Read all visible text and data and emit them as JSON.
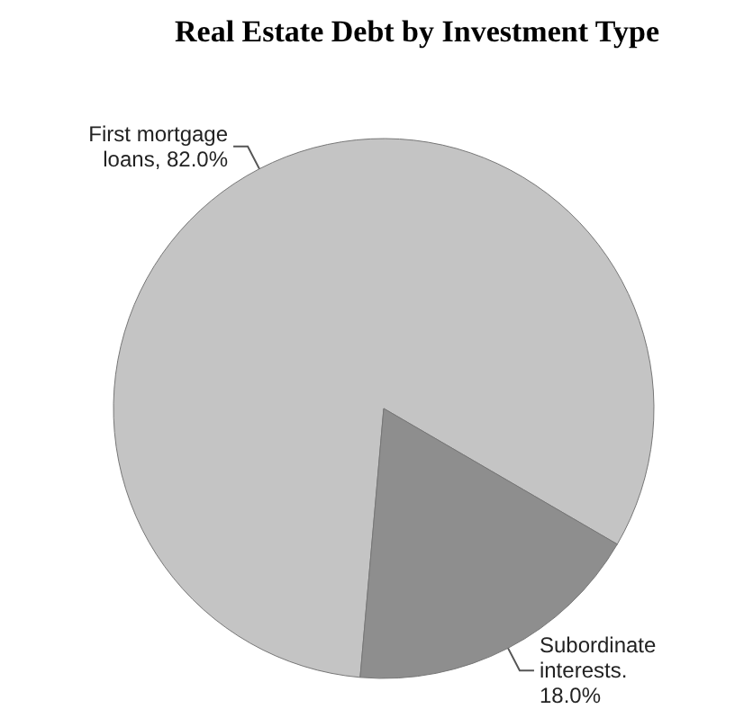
{
  "chart_data": {
    "type": "pie",
    "title": "Real Estate Debt by Investment Type",
    "categories": [
      "First mortgage loans, 82.0%",
      "Subordinate interests. 18.0%"
    ],
    "values": [
      82,
      18
    ],
    "colors": [
      "#c4c4c4",
      "#8e8e8e"
    ]
  }
}
